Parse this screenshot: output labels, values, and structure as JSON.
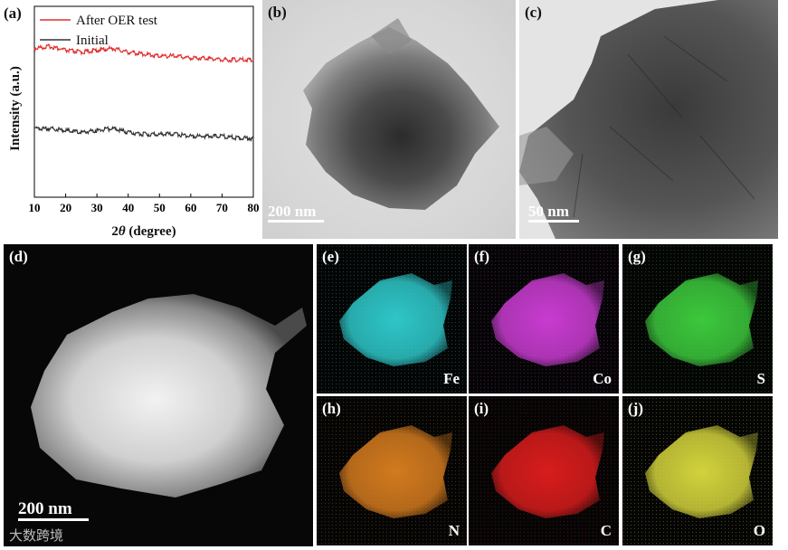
{
  "panel_a": {
    "label": "(a)",
    "legend": [
      {
        "name": "After OER test",
        "color": "#e03030"
      },
      {
        "name": "Initial",
        "color": "#333333"
      }
    ],
    "ylabel": "Intensity (a.u.)",
    "xlabel_prefix": "2",
    "xlabel_theta": "θ",
    "xlabel_suffix": " (degree)"
  },
  "chart_data": {
    "type": "line",
    "xlabel": "2θ (degree)",
    "ylabel": "Intensity (a.u.)",
    "xlim": [
      10,
      80
    ],
    "xticks": [
      10,
      20,
      30,
      40,
      50,
      60,
      70,
      80
    ],
    "yticks_shown": false,
    "grid": false,
    "legend_position": "top-left",
    "series": [
      {
        "name": "After OER test",
        "color": "#e03030",
        "x": [
          10,
          15,
          20,
          25,
          30,
          35,
          40,
          45,
          50,
          55,
          60,
          65,
          70,
          75,
          80
        ],
        "y": [
          0.78,
          0.79,
          0.77,
          0.76,
          0.77,
          0.78,
          0.76,
          0.75,
          0.74,
          0.74,
          0.73,
          0.73,
          0.72,
          0.72,
          0.72
        ]
      },
      {
        "name": "Initial",
        "color": "#333333",
        "x": [
          10,
          15,
          20,
          25,
          30,
          35,
          40,
          45,
          50,
          55,
          60,
          65,
          70,
          75,
          80
        ],
        "y": [
          0.36,
          0.36,
          0.35,
          0.34,
          0.35,
          0.36,
          0.34,
          0.33,
          0.33,
          0.33,
          0.32,
          0.32,
          0.32,
          0.31,
          0.31
        ]
      }
    ]
  },
  "panel_b": {
    "label": "(b)",
    "scale": "200 nm"
  },
  "panel_c": {
    "label": "(c)",
    "scale": "50 nm"
  },
  "panel_d": {
    "label": "(d)",
    "scale": "200 nm"
  },
  "maps": [
    {
      "label": "(e)",
      "element": "Fe",
      "color": "#2ec6c8"
    },
    {
      "label": "(f)",
      "element": "Co",
      "color": "#c83cd0"
    },
    {
      "label": "(g)",
      "element": "S",
      "color": "#3cc83c"
    },
    {
      "label": "(h)",
      "element": "N",
      "color": "#d27a1e"
    },
    {
      "label": "(i)",
      "element": "C",
      "color": "#d81c1c"
    },
    {
      "label": "(j)",
      "element": "O",
      "color": "#d2d23c"
    }
  ],
  "watermark": "大数跨境"
}
